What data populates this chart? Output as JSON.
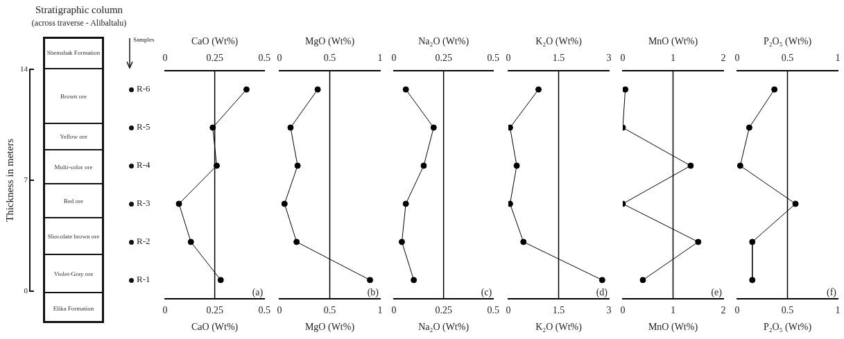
{
  "chart_data": [
    {
      "type": "other",
      "title": "Stratigraphic column",
      "subtitle": "(across traverse - Alibaltalu)",
      "ylabel": "Thickness in meters",
      "y_categories": [
        "14",
        "7",
        "0"
      ],
      "categories": [
        "Shemshak  Formation",
        "Brown ore",
        "Yellow ore",
        "Multi-color ore",
        "Red ore",
        "Shocolate brown ore",
        "Violet-Gray ore",
        "Elika Formation"
      ],
      "annotations": [
        "Samples",
        "R-6",
        "R-5",
        "R-4",
        "R-3",
        "R-2",
        "R-1"
      ]
    },
    {
      "type": "line",
      "orientation": "horizontal",
      "categories": [
        null,
        null,
        null,
        null,
        null,
        null
      ],
      "tick_labels": "x",
      "marker": "circle",
      "xlabel": "CaO (Wt%)",
      "x2label": "CaO (Wt%)",
      "xlim": [
        0,
        0.5
      ],
      "xticks": [
        0,
        0.25,
        0.5
      ],
      "x2lim": [
        0,
        0.5
      ],
      "x2ticks": [
        0,
        0.25,
        0.5
      ],
      "ref_lines": [
        {
          "axis": "x",
          "value": 0.25
        }
      ],
      "annotations": [
        "(a)"
      ],
      "series": [
        {
          "color": "#000000",
          "values": [
            0.41,
            0.24,
            0.26,
            0.07,
            0.13,
            0.28
          ]
        }
      ]
    },
    {
      "type": "line",
      "orientation": "horizontal",
      "categories": [
        null,
        null,
        null,
        null,
        null,
        null
      ],
      "tick_labels": "x",
      "marker": "circle",
      "xlabel": "MgO (Wt%)",
      "x2label": "MgO (Wt%)",
      "xlim": [
        0,
        1
      ],
      "xticks": [
        0,
        0.5,
        1
      ],
      "x2lim": [
        0,
        1
      ],
      "x2ticks": [
        0,
        0.5,
        1
      ],
      "ref_lines": [
        {
          "axis": "x",
          "value": 0.5
        }
      ],
      "annotations": [
        "(b)"
      ],
      "series": [
        {
          "color": "#000000",
          "values": [
            0.38,
            0.11,
            0.18,
            0.05,
            0.17,
            0.9
          ]
        }
      ]
    },
    {
      "type": "line",
      "orientation": "horizontal",
      "categories": [
        null,
        null,
        null,
        null,
        null,
        null
      ],
      "tick_labels": "x",
      "marker": "circle",
      "xlabel": "Na₂O (Wt%)",
      "x2label": "Na₂O (Wt%)",
      "xlim": [
        0,
        0.5
      ],
      "xticks": [
        0,
        0.25,
        0.5
      ],
      "x2lim": [
        0,
        0.5
      ],
      "x2ticks": [
        0,
        0.25,
        0.5
      ],
      "ref_lines": [
        {
          "axis": "x",
          "value": 0.25
        }
      ],
      "annotations": [
        "(c)"
      ],
      "series": [
        {
          "color": "#000000",
          "values": [
            0.06,
            0.2,
            0.15,
            0.06,
            0.04,
            0.1
          ]
        }
      ]
    },
    {
      "type": "line",
      "orientation": "horizontal",
      "categories": [
        null,
        null,
        null,
        null,
        null,
        null
      ],
      "tick_labels": "x",
      "marker": "circle",
      "xlabel": "K₂O (Wt%)",
      "x2label": "K₂O (Wt%)",
      "xlim": [
        0,
        3
      ],
      "xticks": [
        0,
        1.5,
        3
      ],
      "x2lim": [
        0,
        3
      ],
      "x2ticks": [
        0,
        1.5,
        3
      ],
      "ref_lines": [
        {
          "axis": "x",
          "value": 1.5
        }
      ],
      "annotations": [
        "(d)"
      ],
      "series": [
        {
          "color": "#000000",
          "values": [
            0.9,
            0.05,
            0.25,
            0.05,
            0.45,
            2.8
          ]
        }
      ]
    },
    {
      "type": "line",
      "orientation": "horizontal",
      "categories": [
        null,
        null,
        null,
        null,
        null,
        null
      ],
      "tick_labels": "x",
      "marker": "circle",
      "xlabel": "MnO (Wt%)",
      "x2label": "MnO (Wt%)",
      "xlim": [
        0,
        2
      ],
      "xticks": [
        0,
        1,
        2
      ],
      "x2lim": [
        0,
        2
      ],
      "x2ticks": [
        0,
        1,
        2
      ],
      "ref_lines": [
        {
          "axis": "x",
          "value": 1
        }
      ],
      "annotations": [
        "(e)"
      ],
      "series": [
        {
          "color": "#000000",
          "values": [
            0.05,
            0,
            1.35,
            0,
            1.5,
            0.4
          ]
        }
      ]
    },
    {
      "type": "line",
      "orientation": "horizontal",
      "categories": [
        null,
        null,
        null,
        null,
        null,
        null
      ],
      "tick_labels": "x",
      "marker": "circle",
      "xlabel": "P₂O₅ (Wt%)",
      "x2label": "P₂O₅ (Wt%)",
      "xlim": [
        0,
        1
      ],
      "xticks": [
        0,
        0.5,
        1
      ],
      "x2lim": [
        0,
        1
      ],
      "x2ticks": [
        0,
        0.5,
        1
      ],
      "ref_lines": [
        {
          "axis": "x",
          "value": 0.5
        }
      ],
      "annotations": [
        "(f)"
      ],
      "series": [
        {
          "color": "#000000",
          "values": [
            0.37,
            0.12,
            0.03,
            0.58,
            0.15,
            0.15
          ]
        }
      ]
    }
  ]
}
